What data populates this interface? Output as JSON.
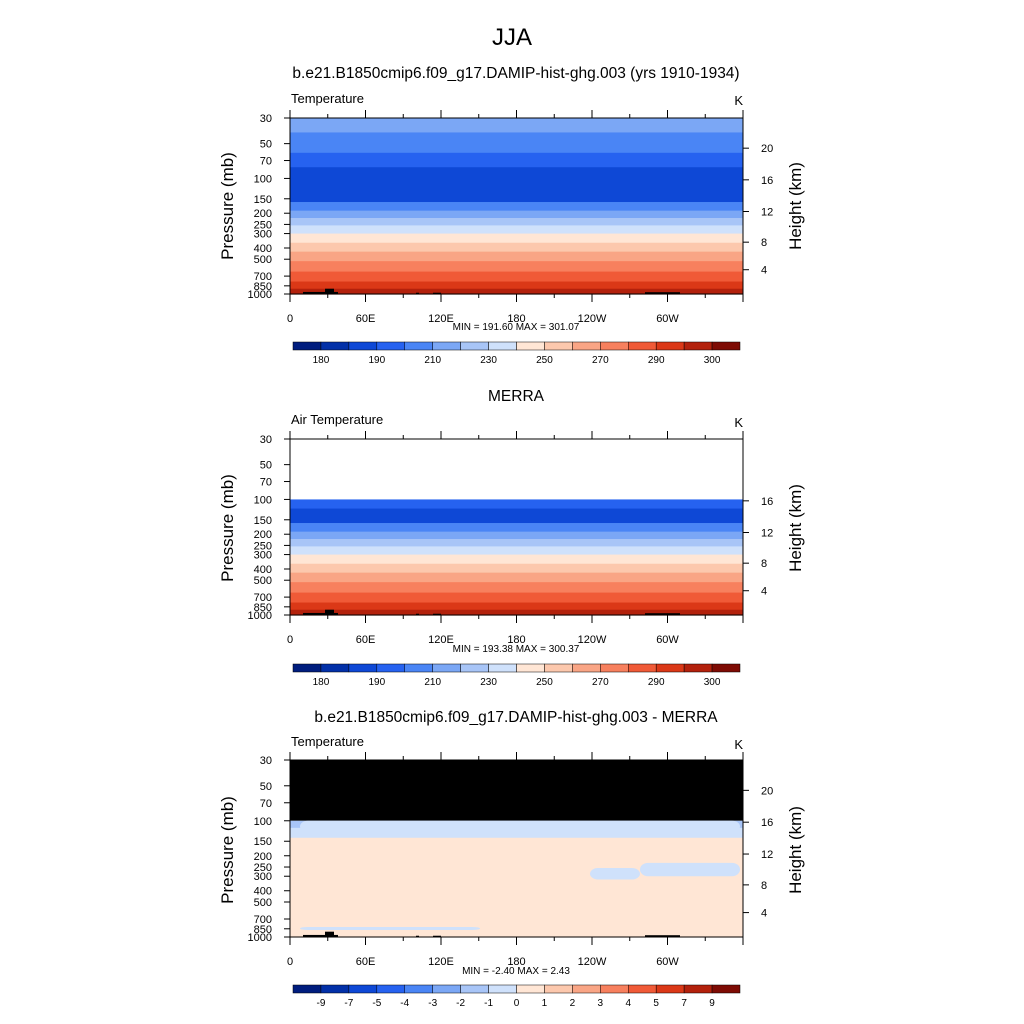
{
  "title": "JJA",
  "palette": [
    "#001d7e",
    "#0230a8",
    "#0e48d6",
    "#2662f0",
    "#4a85f5",
    "#7ba7f5",
    "#a8c5f7",
    "#cfe1fb",
    "#ffe6d5",
    "#fcc8ad",
    "#f9a585",
    "#f7805e",
    "#f05a37",
    "#db3817",
    "#b3210c",
    "#7e0b04"
  ],
  "chart_data": [
    {
      "type": "heatmap",
      "panel_title": "b.e21.B1850cmip6.f09_g17.DAMIP-hist-ghg.003 (yrs 1910-1934)",
      "left_label": "Temperature",
      "units": "K",
      "ylabel": "Pressure (mb)",
      "y2label": "Height (km)",
      "y_ticks": [
        30,
        50,
        70,
        100,
        150,
        200,
        250,
        300,
        400,
        500,
        700,
        850,
        1000
      ],
      "height_ticks": [
        4,
        8,
        12,
        16,
        20
      ],
      "x_ticks": [
        "0",
        "60E",
        "120E",
        "180",
        "120W",
        "60W"
      ],
      "min_max": "MIN = 191.60  MAX = 301.07",
      "colorbar_labels": [
        "180",
        "190",
        "210",
        "230",
        "250",
        "270",
        "290",
        "300"
      ],
      "levels": [
        {
          "p": 30,
          "ci": 5
        },
        {
          "p": 40,
          "ci": 4
        },
        {
          "p": 60,
          "ci": 3
        },
        {
          "p": 80,
          "ci": 2
        },
        {
          "p": 120,
          "ci": 2
        },
        {
          "p": 160,
          "ci": 4
        },
        {
          "p": 190,
          "ci": 5
        },
        {
          "p": 220,
          "ci": 6
        },
        {
          "p": 255,
          "ci": 7
        },
        {
          "p": 300,
          "ci": 8
        },
        {
          "p": 360,
          "ci": 9
        },
        {
          "p": 430,
          "ci": 10
        },
        {
          "p": 520,
          "ci": 11
        },
        {
          "p": 640,
          "ci": 12
        },
        {
          "p": 780,
          "ci": 13
        },
        {
          "p": 900,
          "ci": 14
        },
        {
          "p": 1000,
          "ci": 14
        }
      ]
    },
    {
      "type": "heatmap",
      "panel_title": "MERRA",
      "left_label": "Air Temperature",
      "units": "K",
      "ylabel": "Pressure (mb)",
      "y2label": "Height (km)",
      "y_ticks": [
        30,
        50,
        70,
        100,
        150,
        200,
        250,
        300,
        400,
        500,
        700,
        850,
        1000
      ],
      "height_ticks": [
        4,
        8,
        12,
        16
      ],
      "x_ticks": [
        "0",
        "60E",
        "120E",
        "180",
        "120W",
        "60W"
      ],
      "min_max": "MIN = 193.38  MAX = 300.37",
      "colorbar_labels": [
        "180",
        "190",
        "210",
        "230",
        "250",
        "270",
        "290",
        "300"
      ],
      "missing_above_p": 100,
      "levels": [
        {
          "p": 100,
          "ci": 3
        },
        {
          "p": 120,
          "ci": 2
        },
        {
          "p": 160,
          "ci": 4
        },
        {
          "p": 190,
          "ci": 5
        },
        {
          "p": 220,
          "ci": 6
        },
        {
          "p": 255,
          "ci": 7
        },
        {
          "p": 300,
          "ci": 8
        },
        {
          "p": 360,
          "ci": 9
        },
        {
          "p": 430,
          "ci": 10
        },
        {
          "p": 520,
          "ci": 11
        },
        {
          "p": 640,
          "ci": 12
        },
        {
          "p": 780,
          "ci": 13
        },
        {
          "p": 900,
          "ci": 14
        },
        {
          "p": 1000,
          "ci": 14
        }
      ]
    },
    {
      "type": "heatmap",
      "panel_title": "b.e21.B1850cmip6.f09_g17.DAMIP-hist-ghg.003 - MERRA",
      "left_label": "Temperature",
      "units": "K",
      "ylabel": "Pressure (mb)",
      "y2label": "Height (km)",
      "y_ticks": [
        30,
        50,
        70,
        100,
        150,
        200,
        250,
        300,
        400,
        500,
        700,
        850,
        1000
      ],
      "height_ticks": [
        4,
        8,
        12,
        16,
        20
      ],
      "x_ticks": [
        "0",
        "60E",
        "120E",
        "180",
        "120W",
        "60W"
      ],
      "min_max": "MIN =  -2.40  MAX =   2.43",
      "colorbar_labels": [
        "-9",
        "-7",
        "-5",
        "-4",
        "-3",
        "-2",
        "-1",
        "0",
        "1",
        "2",
        "3",
        "4",
        "5",
        "7",
        "9"
      ],
      "missing_above_p": 100,
      "levels": [
        {
          "p": 100,
          "ci": 6
        },
        {
          "p": 115,
          "ci": 7
        },
        {
          "p": 140,
          "ci": 8
        },
        {
          "p": 1000,
          "ci": 8
        }
      ]
    }
  ]
}
